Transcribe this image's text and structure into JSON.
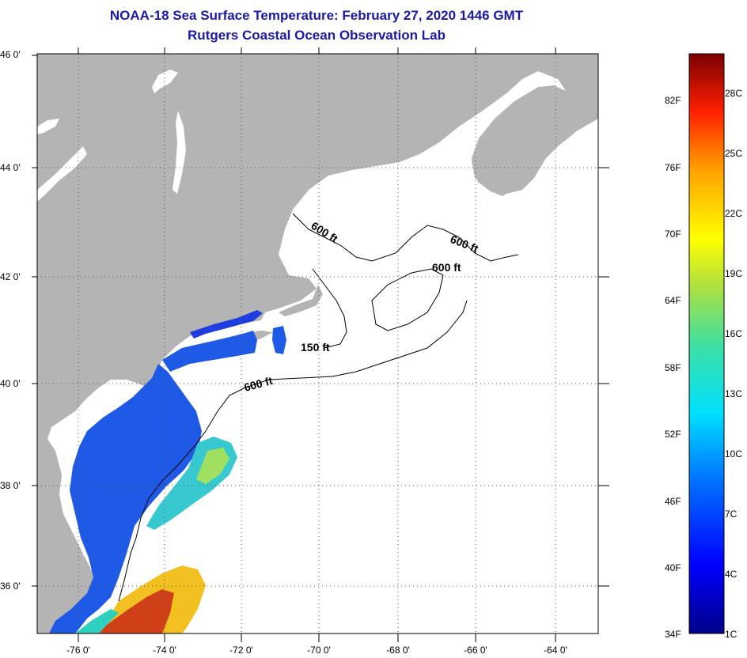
{
  "title": "NOAA-18 Sea Surface Temperature:  February 27, 2020 1446 GMT",
  "subtitle": "Rutgers Coastal Ocean Observation Lab",
  "lat_labels": [
    "46 0'",
    "44 0'",
    "42 0'",
    "40 0'",
    "38 0'",
    "36 0'"
  ],
  "lon_labels": [
    "-76 0'",
    "-74 0'",
    "-72 0'",
    "-70 0'",
    "-68 0'",
    "-66 0'",
    "-64 0'"
  ],
  "contours": [
    {
      "label": "600 ft"
    },
    {
      "label": "600 ft"
    },
    {
      "label": "600 ft"
    },
    {
      "label": "150 ft"
    },
    {
      "label": "600 ft"
    }
  ],
  "colorbar": {
    "fahrenheit": [
      "82F",
      "76F",
      "70F",
      "64F",
      "58F",
      "52F",
      "46F",
      "40F",
      "34F"
    ],
    "celsius": [
      "28C",
      "25C",
      "22C",
      "19C",
      "16C",
      "13C",
      "10C",
      "7C",
      "4C",
      "1C"
    ],
    "min_c": 1,
    "max_c": 30
  },
  "colors": {
    "land": "#b4b4b4",
    "ocean": "#ffffff",
    "title": "#1a1aa6"
  }
}
